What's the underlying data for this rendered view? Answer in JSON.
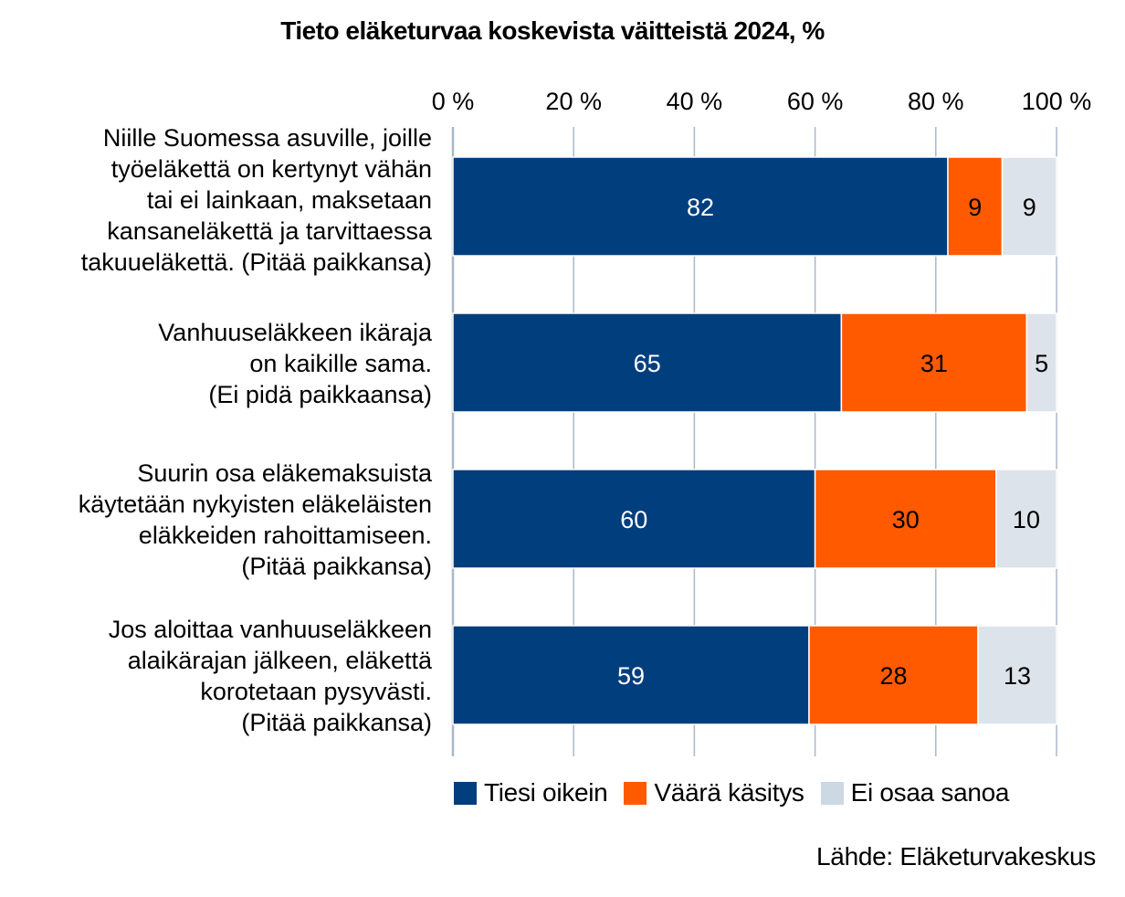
{
  "chart_data": {
    "type": "bar",
    "orientation": "horizontal",
    "stacked": "percent",
    "title": "Tieto eläketurvaa koskevista väitteistä 2024, %",
    "xlabel": "",
    "ylabel": "",
    "xlim": [
      0,
      100
    ],
    "x_ticks": [
      "0 %",
      "20 %",
      "40 %",
      "60 %",
      "80 %",
      "100 %"
    ],
    "x_tick_values": [
      0,
      20,
      40,
      60,
      80,
      100
    ],
    "x_axis_position": "top",
    "grid": true,
    "legend_position": "bottom",
    "categories": [
      [
        "Niille Suomessa asuville, joille",
        "työeläkettä on kertynyt vähän",
        "tai ei lainkaan, maksetaan",
        "kansaneläkettä ja tarvittaessa",
        "takuueläkettä. (Pitää paikkansa)"
      ],
      [
        "Vanhuuseläkkeen ikäraja",
        "on kaikille sama.",
        "(Ei pidä paikkaansa)"
      ],
      [
        "Suurin osa eläkemaksuista",
        "käytetään nykyisten eläkeläisten",
        "eläkkeiden rahoittamiseen.",
        "(Pitää paikkansa)"
      ],
      [
        "Jos aloittaa vanhuuseläkkeen",
        "alaikärajan jälkeen, eläkettä",
        "korotetaan pysyvästi.",
        "(Pitää paikkansa)"
      ]
    ],
    "series": [
      {
        "name": "Tiesi oikein",
        "color": "#003e7e",
        "label_color": "#ffffff",
        "values": [
          82,
          65,
          60,
          59
        ]
      },
      {
        "name": "Väärä käsitys",
        "color": "#ff5a00",
        "label_color": "#000000",
        "values": [
          9,
          31,
          30,
          28
        ]
      },
      {
        "name": "Ei osaa sanoa",
        "color": "#dde3ea",
        "label_color": "#000000",
        "values": [
          9,
          5,
          10,
          13
        ]
      }
    ],
    "source": "Lähde: Eläketurvakeskus"
  },
  "legend": {
    "items": [
      {
        "label": "Tiesi oikein",
        "color": "#003e7e"
      },
      {
        "label": "Väärä käsitys",
        "color": "#ff5a00"
      },
      {
        "label": "Ei osaa sanoa",
        "color": "#ccd8e2"
      }
    ]
  }
}
